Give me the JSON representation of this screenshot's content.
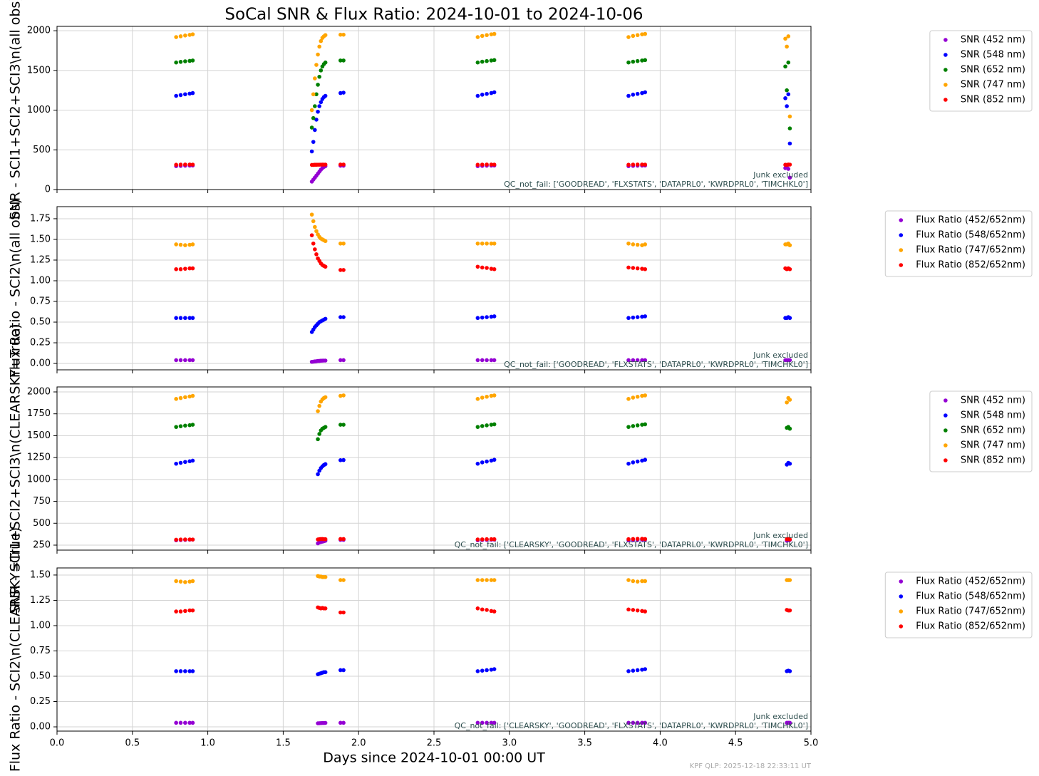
{
  "chart_data": [
    {
      "type": "scatter",
      "title": "SoCal SNR & Flux Ratio: 2024-10-01 to 2024-10-06",
      "ylabel": "SNR - SCI1+SCI2+SCI3\\n(all obs)",
      "annotations": [
        "Junk excluded",
        "QC_not_fail: ['GOODREAD', 'FLXSTATS', 'DATAPRL0', 'KWRDPRL0', 'TIMCHKL0']"
      ],
      "xlim": [
        0,
        5
      ],
      "xticks": [
        0,
        0.5,
        1,
        1.5,
        2,
        2.5,
        3,
        3.5,
        4,
        4.5,
        5
      ],
      "ylim": [
        0,
        2055
      ],
      "yticks": [
        0,
        500,
        1000,
        1500,
        2000
      ],
      "grid": true,
      "legend": "outside right",
      "x": [
        0.79,
        0.82,
        0.85,
        0.88,
        0.9,
        1.69,
        1.7,
        1.71,
        1.72,
        1.73,
        1.74,
        1.75,
        1.76,
        1.77,
        1.78,
        1.88,
        1.9,
        2.79,
        2.82,
        2.85,
        2.88,
        2.9,
        3.79,
        3.82,
        3.85,
        3.88,
        3.9,
        4.83,
        4.84,
        4.85,
        4.86
      ],
      "series": [
        {
          "name": "SNR (452 nm)",
          "color": "#9400d3",
          "values": [
            295,
            298,
            300,
            302,
            303,
            100,
            125,
            150,
            175,
            200,
            225,
            250,
            270,
            285,
            295,
            300,
            300,
            295,
            298,
            300,
            302,
            303,
            295,
            298,
            300,
            302,
            303,
            270,
            280,
            260,
            150
          ]
        },
        {
          "name": "SNR (548 nm)",
          "color": "#0000ff",
          "values": [
            1180,
            1190,
            1200,
            1208,
            1215,
            480,
            600,
            750,
            880,
            980,
            1050,
            1100,
            1140,
            1165,
            1180,
            1215,
            1220,
            1180,
            1195,
            1205,
            1215,
            1225,
            1180,
            1195,
            1205,
            1215,
            1225,
            1150,
            1050,
            1200,
            580
          ]
        },
        {
          "name": "SNR (652 nm)",
          "color": "#008000",
          "values": [
            1600,
            1608,
            1615,
            1620,
            1625,
            780,
            900,
            1050,
            1200,
            1320,
            1420,
            1500,
            1550,
            1580,
            1600,
            1625,
            1625,
            1600,
            1610,
            1618,
            1625,
            1630,
            1600,
            1610,
            1618,
            1625,
            1630,
            1550,
            1250,
            1600,
            770
          ]
        },
        {
          "name": "SNR (747 nm)",
          "color": "#ffa500",
          "values": [
            1920,
            1930,
            1940,
            1948,
            1955,
            1000,
            1200,
            1400,
            1570,
            1700,
            1800,
            1870,
            1910,
            1930,
            1945,
            1950,
            1950,
            1920,
            1935,
            1945,
            1955,
            1960,
            1920,
            1935,
            1945,
            1955,
            1960,
            1900,
            1800,
            1930,
            920
          ]
        },
        {
          "name": "SNR (852 nm)",
          "color": "#ff0000",
          "values": [
            312,
            314,
            315,
            315,
            314,
            310,
            310,
            312,
            312,
            313,
            313,
            314,
            314,
            314,
            314,
            315,
            315,
            312,
            314,
            315,
            315,
            314,
            312,
            314,
            315,
            315,
            314,
            312,
            310,
            315,
            314
          ]
        }
      ]
    },
    {
      "type": "scatter",
      "ylabel": "Flux Ratio - SCI2\\n(all obs)",
      "annotations": [
        "Junk excluded",
        "QC_not_fail: ['GOODREAD', 'FLXSTATS', 'DATAPRL0', 'KWRDPRL0', 'TIMCHKL0']"
      ],
      "xlim": [
        0,
        5
      ],
      "xticks": [
        0,
        0.5,
        1,
        1.5,
        2,
        2.5,
        3,
        3.5,
        4,
        4.5,
        5
      ],
      "ylim": [
        -0.077,
        1.896
      ],
      "yticks": [
        {
          "value": 0,
          "label": "0.00"
        },
        {
          "value": 0.25,
          "label": "0.25"
        },
        {
          "value": 0.5,
          "label": "0.50"
        },
        {
          "value": 0.75,
          "label": "0.75"
        },
        {
          "value": 1,
          "label": "1.00"
        },
        {
          "value": 1.25,
          "label": "1.25"
        },
        {
          "value": 1.5,
          "label": "1.50"
        },
        {
          "value": 1.75,
          "label": "1.75"
        }
      ],
      "grid": true,
      "legend": "outside right",
      "x": [
        0.79,
        0.82,
        0.85,
        0.88,
        0.9,
        1.69,
        1.7,
        1.71,
        1.72,
        1.73,
        1.74,
        1.75,
        1.76,
        1.77,
        1.78,
        1.88,
        1.9,
        2.79,
        2.82,
        2.85,
        2.88,
        2.9,
        3.79,
        3.82,
        3.85,
        3.88,
        3.9,
        4.83,
        4.84,
        4.85,
        4.86
      ],
      "series": [
        {
          "name": "Flux Ratio (452/652nm)",
          "color": "#9400d3",
          "values": [
            0.04,
            0.04,
            0.04,
            0.04,
            0.04,
            0.02,
            0.022,
            0.025,
            0.027,
            0.03,
            0.031,
            0.033,
            0.034,
            0.035,
            0.035,
            0.04,
            0.04,
            0.04,
            0.04,
            0.04,
            0.04,
            0.04,
            0.04,
            0.04,
            0.04,
            0.04,
            0.04,
            0.04,
            0.04,
            0.04,
            0.04
          ]
        },
        {
          "name": "Flux Ratio (548/652nm)",
          "color": "#0000ff",
          "values": [
            0.55,
            0.55,
            0.55,
            0.55,
            0.55,
            0.38,
            0.41,
            0.44,
            0.46,
            0.48,
            0.5,
            0.51,
            0.52,
            0.53,
            0.54,
            0.56,
            0.56,
            0.55,
            0.555,
            0.56,
            0.565,
            0.57,
            0.55,
            0.555,
            0.56,
            0.565,
            0.57,
            0.55,
            0.55,
            0.56,
            0.55
          ]
        },
        {
          "name": "Flux Ratio (747/652nm)",
          "color": "#ffa500",
          "values": [
            1.44,
            1.435,
            1.43,
            1.435,
            1.44,
            1.8,
            1.72,
            1.65,
            1.6,
            1.56,
            1.53,
            1.51,
            1.5,
            1.49,
            1.48,
            1.45,
            1.45,
            1.45,
            1.45,
            1.45,
            1.45,
            1.45,
            1.45,
            1.44,
            1.435,
            1.43,
            1.44,
            1.44,
            1.44,
            1.45,
            1.43
          ]
        },
        {
          "name": "Flux Ratio (852/652nm)",
          "color": "#ff0000",
          "values": [
            1.14,
            1.14,
            1.145,
            1.15,
            1.15,
            1.55,
            1.45,
            1.38,
            1.32,
            1.27,
            1.24,
            1.21,
            1.19,
            1.18,
            1.17,
            1.13,
            1.13,
            1.17,
            1.16,
            1.155,
            1.145,
            1.14,
            1.16,
            1.155,
            1.15,
            1.145,
            1.14,
            1.15,
            1.14,
            1.15,
            1.14
          ]
        }
      ]
    },
    {
      "type": "scatter",
      "ylabel": "SNR - SCI1+SCI2+SCI3\\n(CLEARSKY=True)",
      "annotations": [
        "Junk excluded",
        "QC_not_fail: ['CLEARSKY', 'GOODREAD', 'FLXSTATS', 'DATAPRL0', 'KWRDPRL0', 'TIMCHKL0']"
      ],
      "xlim": [
        0,
        5
      ],
      "xticks": [
        0,
        0.5,
        1,
        1.5,
        2,
        2.5,
        3,
        3.5,
        4,
        4.5,
        5
      ],
      "ylim": [
        193,
        2057
      ],
      "yticks": [
        250,
        500,
        750,
        1000,
        1250,
        1500,
        1750,
        2000
      ],
      "grid": true,
      "legend": "outside right",
      "x": [
        0.79,
        0.82,
        0.85,
        0.88,
        0.9,
        1.69,
        1.7,
        1.71,
        1.72,
        1.73,
        1.74,
        1.75,
        1.76,
        1.77,
        1.78,
        1.88,
        1.9,
        2.79,
        2.82,
        2.85,
        2.88,
        2.9,
        3.79,
        3.82,
        3.85,
        3.88,
        3.9,
        4.83,
        4.84,
        4.85,
        4.86
      ],
      "series": [
        {
          "name": "SNR (452 nm)",
          "color": "#9400d3",
          "values": [
            305,
            308,
            310,
            312,
            313,
            null,
            null,
            null,
            null,
            270,
            280,
            285,
            290,
            295,
            300,
            310,
            310,
            305,
            308,
            310,
            312,
            313,
            305,
            308,
            310,
            312,
            313,
            null,
            300,
            305,
            310
          ]
        },
        {
          "name": "SNR (548 nm)",
          "color": "#0000ff",
          "values": [
            1180,
            1190,
            1200,
            1208,
            1215,
            null,
            null,
            null,
            null,
            1060,
            1100,
            1130,
            1150,
            1165,
            1175,
            1220,
            1222,
            1180,
            1195,
            1205,
            1215,
            1225,
            1180,
            1195,
            1205,
            1215,
            1225,
            null,
            1170,
            1190,
            1180
          ]
        },
        {
          "name": "SNR (652 nm)",
          "color": "#008000",
          "values": [
            1600,
            1608,
            1615,
            1620,
            1625,
            null,
            null,
            null,
            null,
            1460,
            1520,
            1560,
            1580,
            1590,
            1600,
            1625,
            1625,
            1600,
            1610,
            1618,
            1625,
            1630,
            1600,
            1610,
            1618,
            1625,
            1630,
            null,
            1590,
            1600,
            1580
          ]
        },
        {
          "name": "SNR (747 nm)",
          "color": "#ffa500",
          "values": [
            1920,
            1930,
            1940,
            1948,
            1955,
            null,
            null,
            null,
            null,
            1780,
            1840,
            1890,
            1915,
            1930,
            1940,
            1955,
            1960,
            1920,
            1935,
            1945,
            1955,
            1960,
            1920,
            1935,
            1945,
            1955,
            1960,
            null,
            1880,
            1930,
            1910
          ]
        },
        {
          "name": "SNR (852 nm)",
          "color": "#ff0000",
          "values": [
            312,
            314,
            315,
            315,
            314,
            null,
            null,
            null,
            null,
            315,
            318,
            320,
            320,
            318,
            318,
            320,
            320,
            315,
            316,
            318,
            318,
            318,
            318,
            320,
            322,
            322,
            320,
            null,
            318,
            320,
            315
          ]
        }
      ]
    },
    {
      "type": "scatter",
      "ylabel": "Flux Ratio - SCI2\\n(CLEARSKY=True)",
      "xlabel": "Days since 2024-10-01 00:00 UT",
      "annotations": [
        "Junk excluded",
        "QC_not_fail: ['CLEARSKY', 'GOODREAD', 'FLXSTATS', 'DATAPRL0', 'KWRDPRL0', 'TIMCHKL0']"
      ],
      "xlim": [
        0,
        5
      ],
      "xticks": [
        {
          "value": 0,
          "label": "0.0"
        },
        {
          "value": 0.5,
          "label": "0.5"
        },
        {
          "value": 1,
          "label": "1.0"
        },
        {
          "value": 1.5,
          "label": "1.5"
        },
        {
          "value": 2,
          "label": "2.0"
        },
        {
          "value": 2.5,
          "label": "2.5"
        },
        {
          "value": 3,
          "label": "3.0"
        },
        {
          "value": 3.5,
          "label": "3.5"
        },
        {
          "value": 4,
          "label": "4.0"
        },
        {
          "value": 4.5,
          "label": "4.5"
        },
        {
          "value": 5,
          "label": "5.0"
        }
      ],
      "ylim": [
        -0.042,
        1.57
      ],
      "yticks": [
        {
          "value": 0,
          "label": "0.00"
        },
        {
          "value": 0.25,
          "label": "0.25"
        },
        {
          "value": 0.5,
          "label": "0.50"
        },
        {
          "value": 0.75,
          "label": "0.75"
        },
        {
          "value": 1,
          "label": "1.00"
        },
        {
          "value": 1.25,
          "label": "1.25"
        },
        {
          "value": 1.5,
          "label": "1.50"
        }
      ],
      "grid": true,
      "legend": "outside right",
      "x": [
        0.79,
        0.82,
        0.85,
        0.88,
        0.9,
        1.69,
        1.7,
        1.71,
        1.72,
        1.73,
        1.74,
        1.75,
        1.76,
        1.77,
        1.78,
        1.88,
        1.9,
        2.79,
        2.82,
        2.85,
        2.88,
        2.9,
        3.79,
        3.82,
        3.85,
        3.88,
        3.9,
        4.83,
        4.84,
        4.85,
        4.86
      ],
      "series": [
        {
          "name": "Flux Ratio (452/652nm)",
          "color": "#9400d3",
          "values": [
            0.04,
            0.04,
            0.04,
            0.04,
            0.04,
            null,
            null,
            null,
            null,
            0.035,
            0.036,
            0.037,
            0.038,
            0.038,
            0.039,
            0.04,
            0.04,
            0.04,
            0.04,
            0.04,
            0.04,
            0.04,
            0.04,
            0.04,
            0.04,
            0.04,
            0.04,
            null,
            0.04,
            0.04,
            0.04
          ]
        },
        {
          "name": "Flux Ratio (548/652nm)",
          "color": "#0000ff",
          "values": [
            0.55,
            0.55,
            0.55,
            0.55,
            0.55,
            null,
            null,
            null,
            null,
            0.52,
            0.525,
            0.53,
            0.535,
            0.54,
            0.54,
            0.56,
            0.56,
            0.55,
            0.555,
            0.56,
            0.565,
            0.57,
            0.55,
            0.555,
            0.56,
            0.565,
            0.57,
            null,
            0.55,
            0.555,
            0.55
          ]
        },
        {
          "name": "Flux Ratio (747/652nm)",
          "color": "#ffa500",
          "values": [
            1.44,
            1.435,
            1.43,
            1.435,
            1.44,
            null,
            null,
            null,
            null,
            1.49,
            1.485,
            1.485,
            1.48,
            1.48,
            1.48,
            1.45,
            1.45,
            1.45,
            1.45,
            1.45,
            1.45,
            1.45,
            1.45,
            1.44,
            1.435,
            1.44,
            1.44,
            null,
            1.45,
            1.45,
            1.45
          ]
        },
        {
          "name": "Flux Ratio (852/652nm)",
          "color": "#ff0000",
          "values": [
            1.14,
            1.14,
            1.145,
            1.15,
            1.15,
            null,
            null,
            null,
            null,
            1.18,
            1.175,
            1.17,
            1.175,
            1.17,
            1.17,
            1.13,
            1.13,
            1.17,
            1.16,
            1.155,
            1.145,
            1.14,
            1.16,
            1.155,
            1.15,
            1.145,
            1.14,
            null,
            1.155,
            1.15,
            1.15
          ]
        }
      ]
    }
  ],
  "footer": "KPF QLP: 2025-12-18 22:33:11 UT"
}
